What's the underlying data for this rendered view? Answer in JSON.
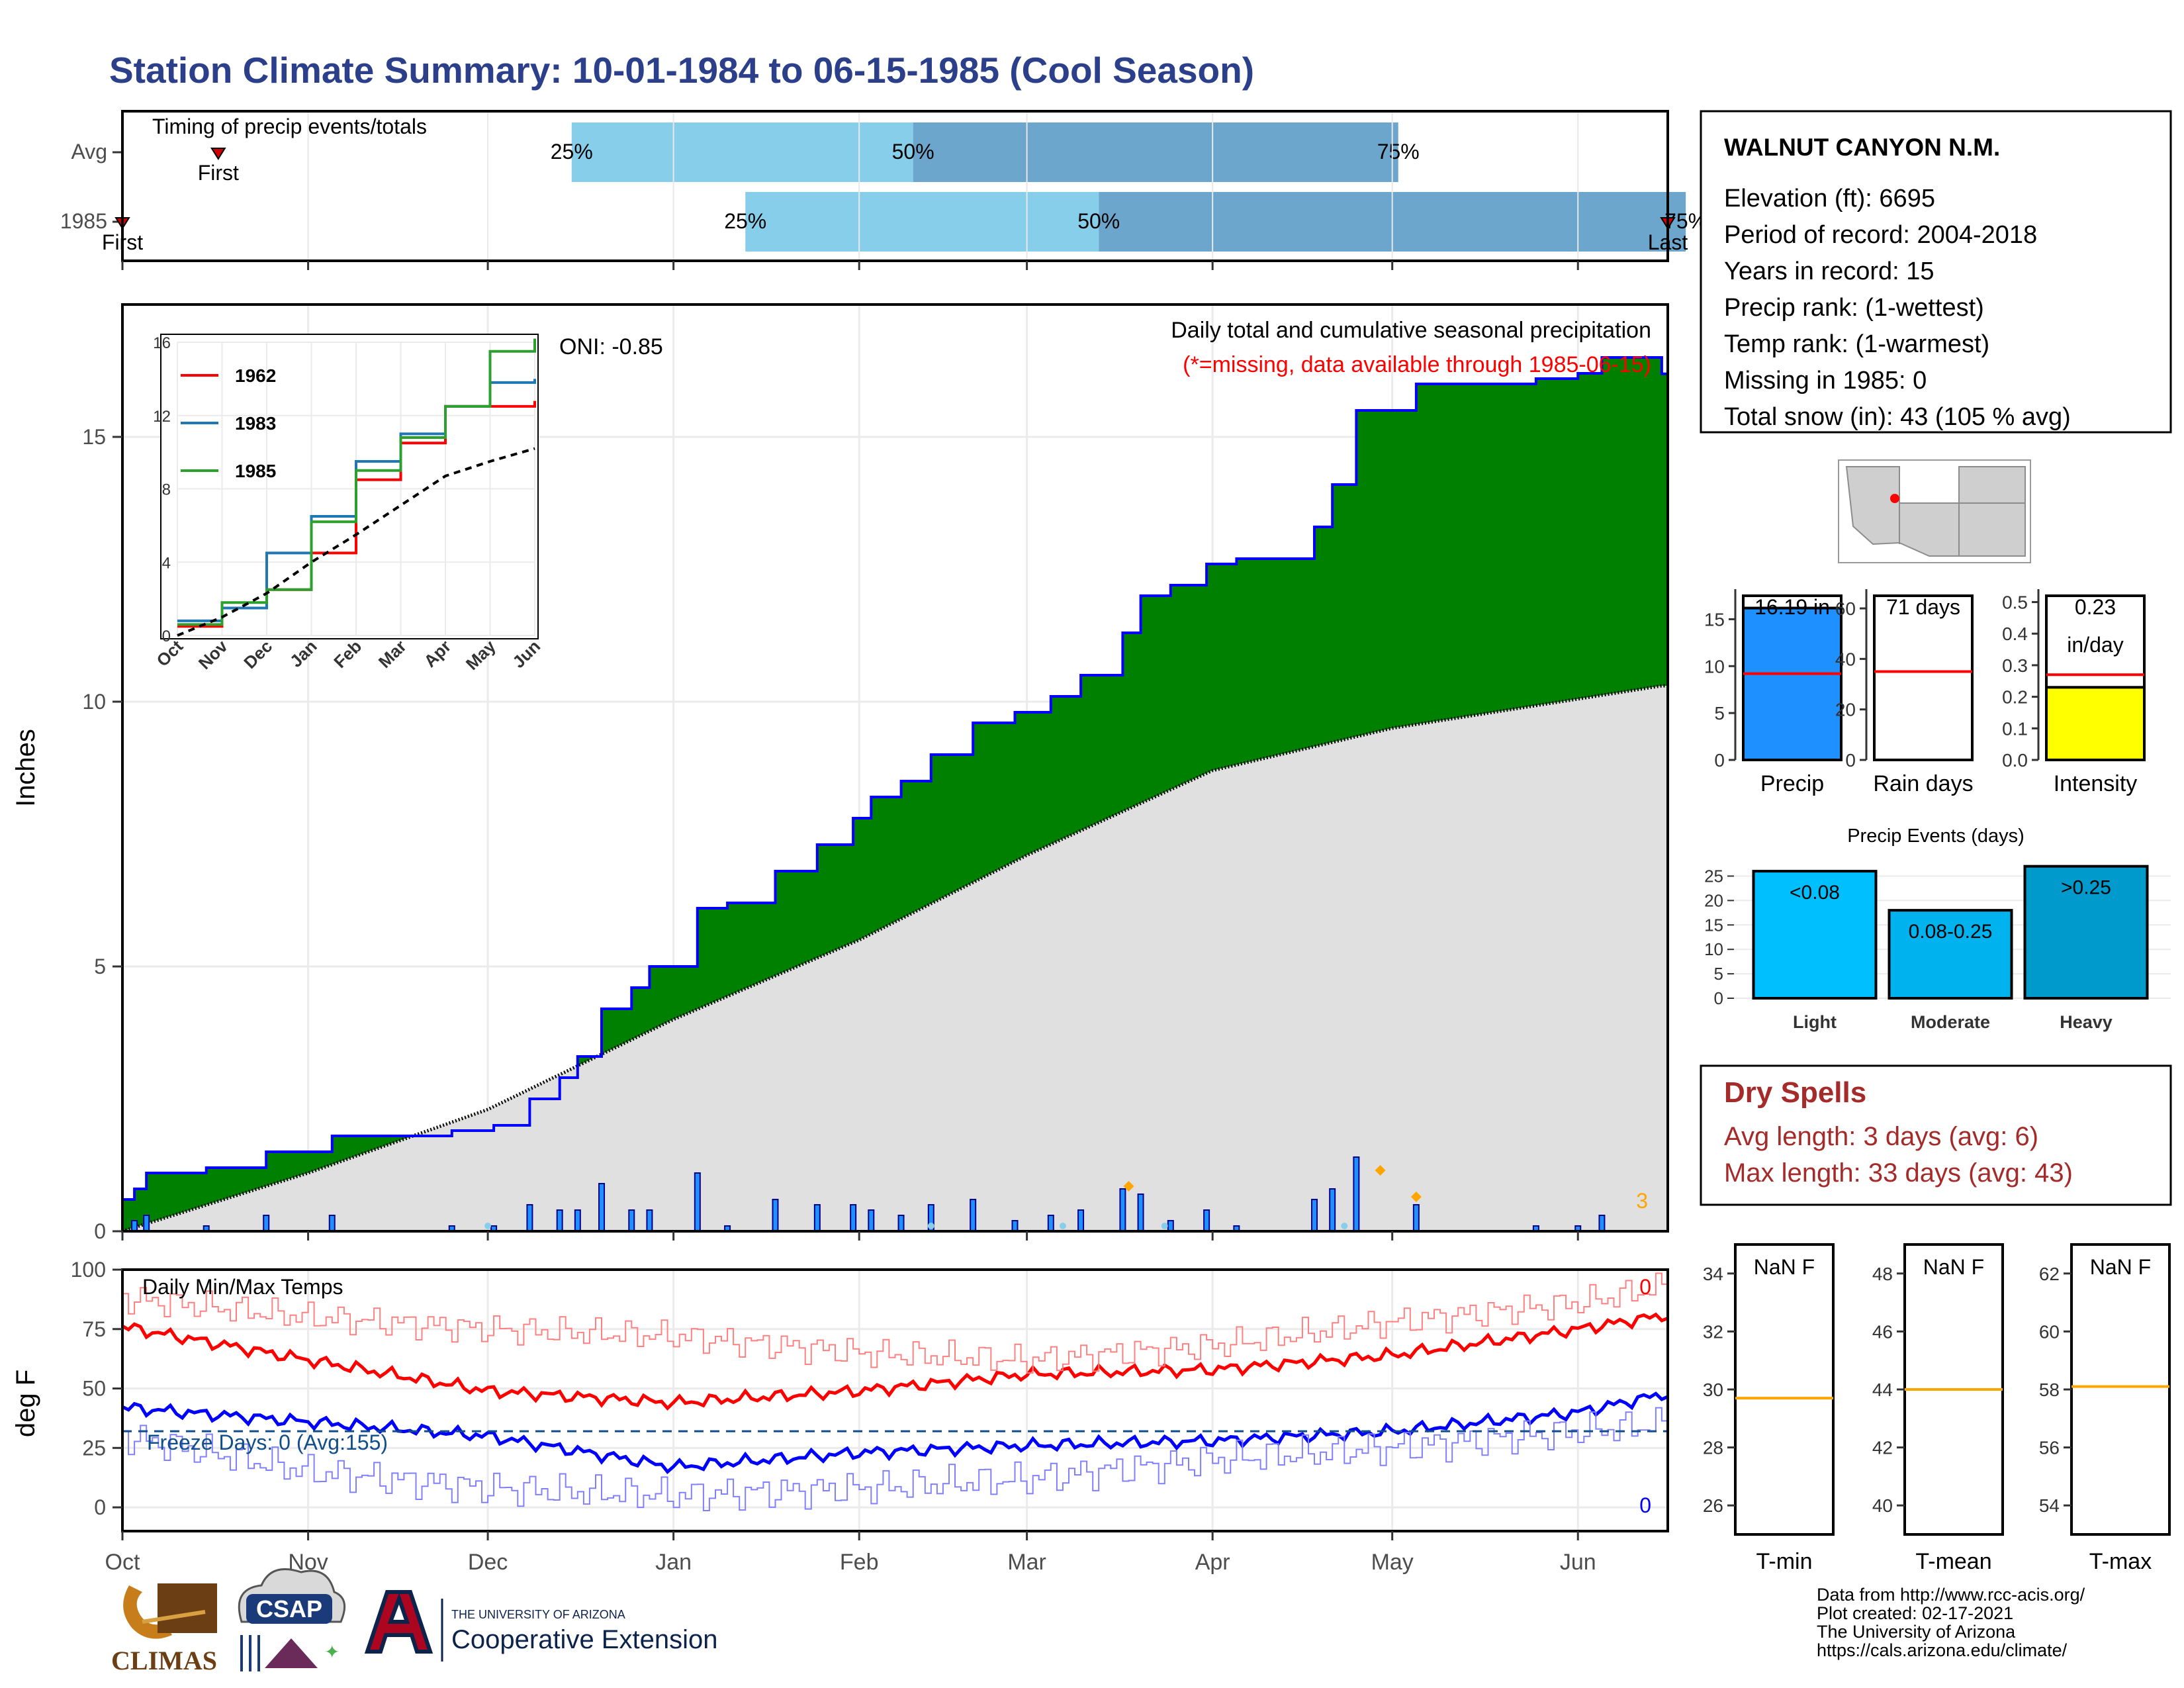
{
  "title": "Station Climate Summary: 10-01-1984 to 06-15-1985 (Cool Season)",
  "colors": {
    "title": "#2b3f8a",
    "timing_light": "#87ceeb",
    "timing_dark": "#6ca6cd",
    "cumulative_fill": "#008000",
    "below_avg_fill": "#8b5a00",
    "avg_fill": "#e0e0e0",
    "line_blue": "#0000ff",
    "temp_max": "#ff0000",
    "temp_min": "#0000ff",
    "dry_spell_text": "#a52a2a",
    "marker_orange": "#ffa500",
    "precip_bar": "#1e90ff",
    "intensity_bar": "#ffff00",
    "event_light": "#00bfff",
    "event_moderate": "#00b2ee",
    "event_heavy": "#009acd"
  },
  "timing": {
    "title": "Timing of precip events/totals",
    "rows": [
      {
        "label": "Avg",
        "p25_day": 75,
        "p50_day": 132,
        "p75_day": 213,
        "first_day": 16,
        "last_day": 288,
        "first_label": "First",
        "last_label": "Last"
      },
      {
        "label": "1985",
        "p25_day": 104,
        "p50_day": 163,
        "p75_day": 261,
        "first_day": 0,
        "last_day": 258,
        "first_label": "First",
        "last_label": "Last"
      }
    ],
    "p25_label": "25%",
    "p50_label": "50%",
    "p75_label": "75%"
  },
  "station": {
    "name": "WALNUT CANYON N.M.",
    "lines": [
      "Elevation (ft): 6695",
      "Period of record: 2004-2018",
      "Years in record: 15",
      "Precip rank:  (1-wettest)",
      "Temp rank:  (1-warmest)",
      "Missing in 1985: 0",
      "Total snow (in): 43 (105 % avg)"
    ]
  },
  "main_chart": {
    "ylabel": "Inches",
    "annotation": "Daily total and cumulative seasonal precipitation",
    "missing_note": "(*=missing, data available through 1985-06-15)",
    "oni": "ONI: -0.85",
    "count_label": "3",
    "x_ticks": [
      "Oct",
      "Nov",
      "Dec",
      "Jan",
      "Feb",
      "Mar",
      "Apr",
      "May",
      "Jun"
    ],
    "y_ticks": [
      "0",
      "5",
      "10",
      "15"
    ]
  },
  "temp_chart": {
    "ylabel": "deg F",
    "title": "Daily Min/Max Temps",
    "freeze_label": "Freeze Days: 0 (Avg:155)",
    "max_count": "0",
    "min_count": "0",
    "y_ticks": [
      "0",
      "25",
      "50",
      "75",
      "100"
    ]
  },
  "inset": {
    "y_ticks": [
      "0",
      "4",
      "8",
      "12",
      "16"
    ],
    "x_ticks": [
      "Oct",
      "Nov",
      "Dec",
      "Jan",
      "Feb",
      "Mar",
      "Apr",
      "May",
      "Jun"
    ],
    "legend": [
      {
        "name": "1962",
        "color": "#ff0000"
      },
      {
        "name": "1983",
        "color": "#1f77b4"
      },
      {
        "name": "1985",
        "color": "#2ca02c"
      }
    ]
  },
  "summary_bars": [
    {
      "label": "Precip",
      "value_label": "16.19 in",
      "y_ticks": [
        "0",
        "5",
        "10",
        "15"
      ]
    },
    {
      "label": "Rain days",
      "value_label": "71 days",
      "y_ticks": [
        "0",
        "20",
        "40",
        "60"
      ]
    },
    {
      "label": "Intensity",
      "value_label": "0.23",
      "value_label2": "in/day",
      "y_ticks": [
        "0.0",
        "0.1",
        "0.2",
        "0.3",
        "0.4",
        "0.5"
      ]
    }
  ],
  "precip_events": {
    "title": "Precip Events (days)",
    "y_ticks": [
      "0",
      "5",
      "10",
      "15",
      "20",
      "25"
    ],
    "bars": [
      {
        "label": "Light",
        "bar_label": "<0.08",
        "value": 26
      },
      {
        "label": "Moderate",
        "bar_label": "0.08-0.25",
        "value": 18
      },
      {
        "label": "Heavy",
        "bar_label": ">0.25",
        "value": 27
      }
    ]
  },
  "dry_spells": {
    "title": "Dry Spells",
    "avg": "Avg length: 3 days (avg: 6)",
    "max": "Max length: 33 days (avg: 43)"
  },
  "temp_boxes": [
    {
      "label": "T-min",
      "value_label": "NaN F",
      "y_ticks": [
        "26",
        "28",
        "30",
        "32",
        "34"
      ]
    },
    {
      "label": "T-mean",
      "value_label": "NaN F",
      "y_ticks": [
        "40",
        "42",
        "44",
        "46",
        "48"
      ]
    },
    {
      "label": "T-max",
      "value_label": "NaN F",
      "y_ticks": [
        "54",
        "56",
        "58",
        "60",
        "62"
      ]
    }
  ],
  "footer": {
    "lines": [
      "Data from http://www.rcc-acis.org/",
      "Plot created: 02-17-2021",
      "The University of Arizona",
      "https://cals.arizona.edu/climate/"
    ],
    "climas": "CLIMAS",
    "csap": "CSAP",
    "ua_small": "THE UNIVERSITY OF ARIZONA",
    "ua_big": "Cooperative Extension"
  },
  "chart_data": [
    {
      "type": "area",
      "title": "Daily total and cumulative seasonal precipitation",
      "ylabel": "Inches",
      "ylim": [
        0,
        17.5
      ],
      "x_range": [
        "1984-10-01",
        "1985-06-15"
      ],
      "series": [
        {
          "name": "1985 cumulative",
          "x": [
            "1984-10-01",
            "1984-10-03",
            "1984-10-05",
            "1984-10-15",
            "1984-10-25",
            "1984-11-05",
            "1984-11-15",
            "1984-11-25",
            "1984-12-02",
            "1984-12-08",
            "1984-12-13",
            "1984-12-16",
            "1984-12-20",
            "1984-12-25",
            "1984-12-28",
            "1985-01-05",
            "1985-01-10",
            "1985-01-18",
            "1985-01-25",
            "1985-01-31",
            "1985-02-03",
            "1985-02-08",
            "1985-02-13",
            "1985-02-20",
            "1985-02-27",
            "1985-03-05",
            "1985-03-10",
            "1985-03-15",
            "1985-03-17",
            "1985-03-20",
            "1985-03-25",
            "1985-03-31",
            "1985-04-05",
            "1985-04-10",
            "1985-04-18",
            "1985-04-21",
            "1985-04-25",
            "1985-05-05",
            "1985-05-15",
            "1985-05-25",
            "1985-06-01",
            "1985-06-05",
            "1985-06-15"
          ],
          "y": [
            0.6,
            0.8,
            1.1,
            1.2,
            1.5,
            1.8,
            1.8,
            1.9,
            2.0,
            2.5,
            2.9,
            3.3,
            4.2,
            4.6,
            5.0,
            6.1,
            6.2,
            6.8,
            7.3,
            7.8,
            8.2,
            8.5,
            9.0,
            9.6,
            9.8,
            10.1,
            10.5,
            10.5,
            11.3,
            12.0,
            12.2,
            12.6,
            12.7,
            12.7,
            13.3,
            14.1,
            15.5,
            16.0,
            16.0,
            16.1,
            16.2,
            16.5,
            16.19
          ]
        },
        {
          "name": "Average cumulative",
          "x": [
            "1984-10-01",
            "1984-11-01",
            "1984-12-01",
            "1985-01-01",
            "1985-02-01",
            "1985-03-01",
            "1985-04-01",
            "1985-05-01",
            "1985-06-15"
          ],
          "y": [
            0.0,
            1.1,
            2.3,
            4.0,
            5.5,
            7.1,
            8.7,
            9.5,
            10.3
          ]
        }
      ]
    },
    {
      "type": "line",
      "title": "Daily Min/Max Temps",
      "ylabel": "deg F",
      "ylim": [
        -5,
        100
      ],
      "x": [
        "Oct",
        "Nov",
        "Dec",
        "Jan",
        "Feb",
        "Mar",
        "Apr",
        "May",
        "Jun",
        "Jun-15"
      ],
      "series": [
        {
          "name": "Avg max",
          "values": [
            76,
            62,
            49,
            44,
            49,
            56,
            58,
            64,
            75,
            81
          ]
        },
        {
          "name": "Avg min",
          "values": [
            42,
            36,
            30,
            17,
            23,
            26,
            28,
            32,
            40,
            48
          ]
        },
        {
          "name": "Daily max",
          "values": [
            88,
            80,
            75,
            72,
            65,
            62,
            68,
            78,
            86,
            93
          ]
        },
        {
          "name": "Daily min",
          "values": [
            30,
            15,
            8,
            5,
            8,
            12,
            20,
            25,
            32,
            35
          ]
        },
        {
          "name": "Freeze",
          "values": [
            32,
            32,
            32,
            32,
            32,
            32,
            32,
            32,
            32,
            32
          ]
        }
      ]
    },
    {
      "type": "line",
      "title": "",
      "ylim": [
        0,
        16
      ],
      "x": [
        "Oct",
        "Nov",
        "Dec",
        "Jan",
        "Feb",
        "Mar",
        "Apr",
        "May",
        "Jun"
      ],
      "series": [
        {
          "name": "1962",
          "values": [
            0.5,
            1.5,
            2.5,
            4.5,
            8.5,
            10.5,
            12.5,
            12.5,
            12.8
          ]
        },
        {
          "name": "1983",
          "values": [
            0.8,
            1.5,
            4.5,
            6.5,
            9.5,
            11.0,
            12.5,
            13.8,
            14.0
          ]
        },
        {
          "name": "1985",
          "values": [
            0.6,
            1.8,
            2.5,
            6.2,
            9.0,
            10.8,
            12.5,
            15.5,
            16.2
          ]
        },
        {
          "name": "Average",
          "values": [
            0.0,
            1.0,
            2.3,
            4.0,
            5.5,
            7.1,
            8.7,
            9.5,
            10.2
          ]
        }
      ]
    },
    {
      "type": "bar",
      "categories": [
        "Precip",
        "Rain days",
        "Intensity"
      ],
      "series": [
        {
          "name": "1985",
          "values": [
            16.19,
            71,
            0.23
          ]
        },
        {
          "name": "Average",
          "values": [
            9.2,
            35,
            0.27
          ]
        }
      ]
    },
    {
      "type": "bar",
      "title": "Precip Events (days)",
      "categories": [
        "Light",
        "Moderate",
        "Heavy"
      ],
      "values": [
        26,
        18,
        27
      ],
      "ylim": [
        0,
        27
      ]
    }
  ]
}
